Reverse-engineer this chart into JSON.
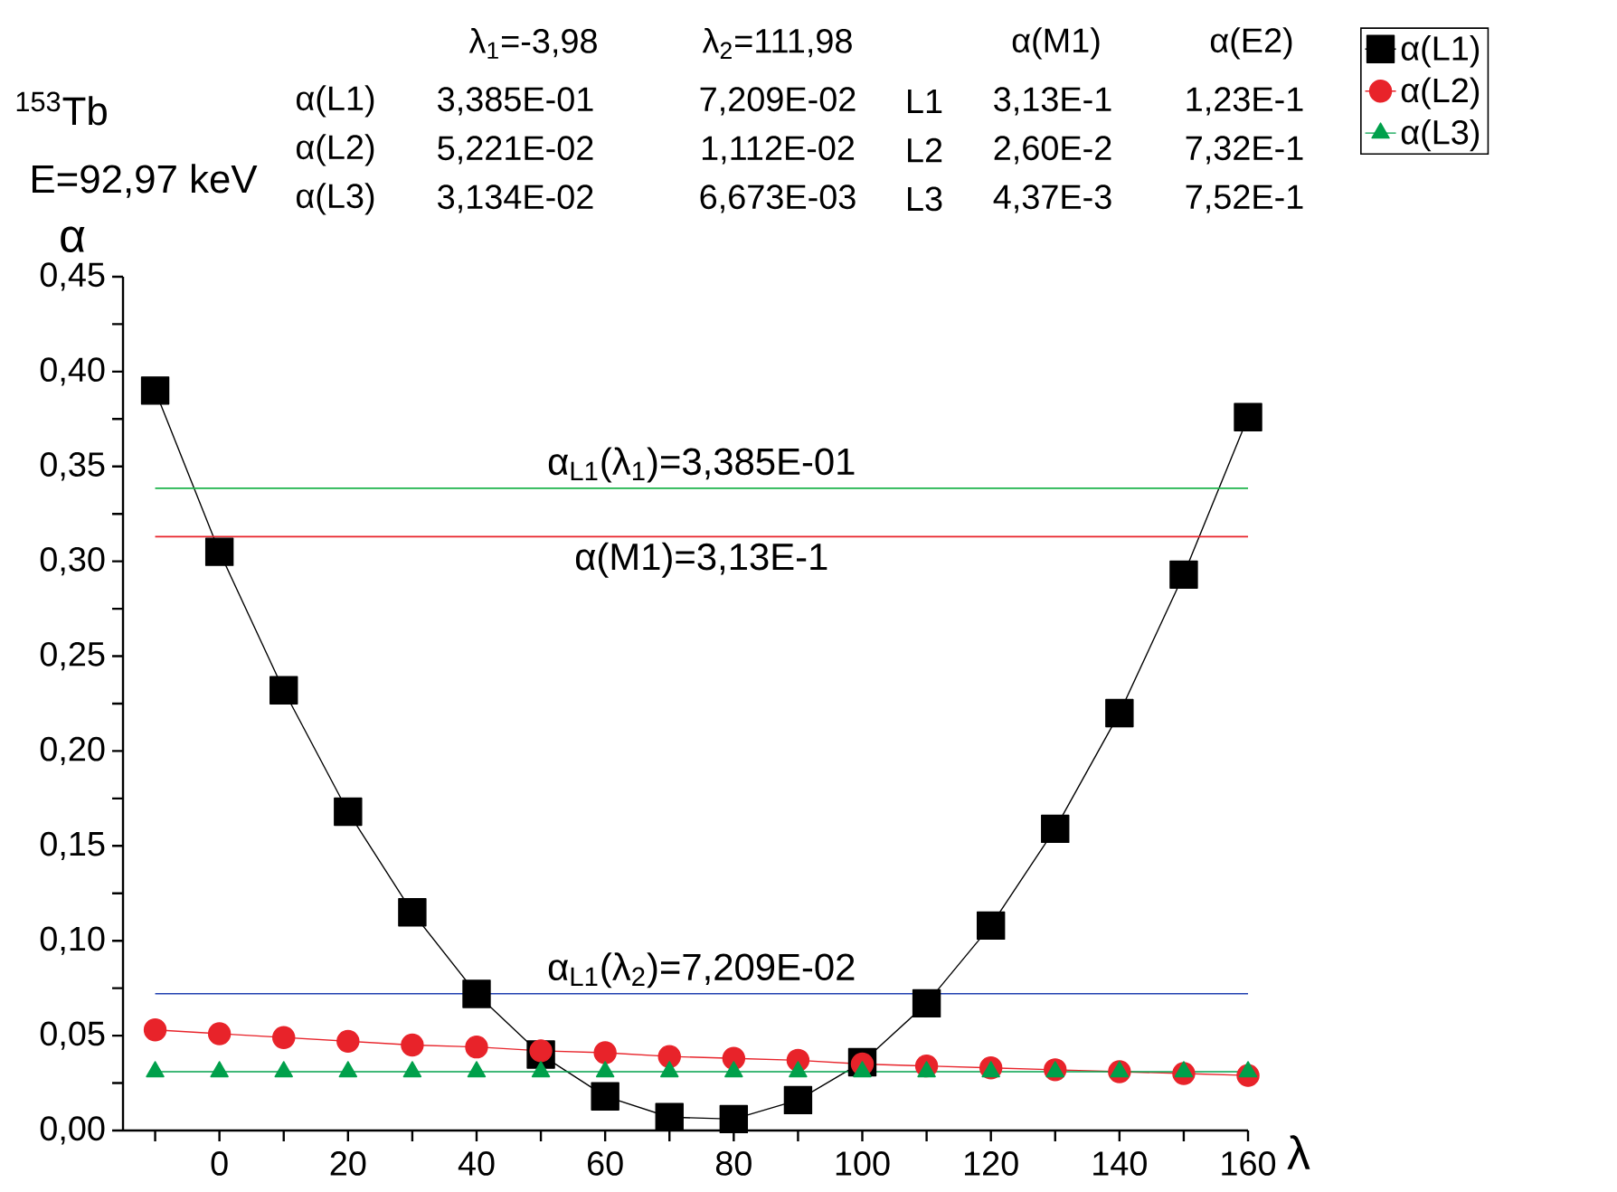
{
  "chart_data": {
    "type": "line",
    "xlabel": "λ",
    "ylabel": "α",
    "x": [
      -10,
      0,
      10,
      20,
      30,
      40,
      50,
      60,
      70,
      80,
      90,
      100,
      110,
      120,
      130,
      140,
      150,
      160
    ],
    "series": [
      {
        "name": "α(L1)",
        "color": "#000000",
        "marker": "square",
        "values": [
          0.39,
          0.305,
          0.232,
          0.168,
          0.115,
          0.072,
          0.04,
          0.018,
          0.007,
          0.006,
          0.016,
          0.036,
          0.067,
          0.108,
          0.159,
          0.22,
          0.293,
          0.376
        ]
      },
      {
        "name": "α(L2)",
        "color": "#e8232a",
        "marker": "circle",
        "values": [
          0.053,
          0.051,
          0.049,
          0.047,
          0.045,
          0.044,
          0.042,
          0.041,
          0.039,
          0.038,
          0.037,
          0.035,
          0.034,
          0.033,
          0.032,
          0.031,
          0.03,
          0.029
        ]
      },
      {
        "name": "α(L3)",
        "color": "#00a04b",
        "marker": "triangle",
        "values": [
          0.031,
          0.031,
          0.031,
          0.031,
          0.031,
          0.031,
          0.031,
          0.031,
          0.031,
          0.031,
          0.031,
          0.031,
          0.031,
          0.031,
          0.031,
          0.031,
          0.031,
          0.031
        ]
      }
    ],
    "xlim": [
      -15,
      160
    ],
    "ylim": [
      0,
      0.45
    ],
    "xticks": [
      {
        "value": -10,
        "label": null
      },
      0,
      {
        "value": 10,
        "label": null
      },
      20,
      {
        "value": 30,
        "label": null
      },
      40,
      {
        "value": 50,
        "label": null
      },
      60,
      {
        "value": 70,
        "label": null
      },
      80,
      {
        "value": 90,
        "label": null
      },
      100,
      {
        "value": 110,
        "label": null
      },
      120,
      {
        "value": 130,
        "label": null
      },
      140,
      {
        "value": 150,
        "label": null
      },
      160
    ],
    "yticks": [
      {
        "value": 0,
        "label": "0,00"
      },
      {
        "value": 0.025,
        "label": null
      },
      {
        "value": 0.05,
        "label": "0,05"
      },
      {
        "value": 0.075,
        "label": null
      },
      {
        "value": 0.1,
        "label": "0,10"
      },
      {
        "value": 0.125,
        "label": null
      },
      {
        "value": 0.15,
        "label": "0,15"
      },
      {
        "value": 0.175,
        "label": null
      },
      {
        "value": 0.2,
        "label": "0,20"
      },
      {
        "value": 0.225,
        "label": null
      },
      {
        "value": 0.25,
        "label": "0,25"
      },
      {
        "value": 0.275,
        "label": null
      },
      {
        "value": 0.3,
        "label": "0,30"
      },
      {
        "value": 0.325,
        "label": null
      },
      {
        "value": 0.35,
        "label": "0,35"
      },
      {
        "value": 0.375,
        "label": null
      },
      {
        "value": 0.4,
        "label": "0,40"
      },
      {
        "value": 0.425,
        "label": null
      },
      {
        "value": 0.45,
        "label": "0,45"
      }
    ],
    "ref_lines": [
      {
        "axis": "y",
        "value": 0.3385,
        "color": "#1db34a"
      },
      {
        "axis": "y",
        "value": 0.313,
        "color": "#e8232a"
      },
      {
        "axis": "y",
        "value": 0.07209,
        "color": "#2040b0"
      }
    ],
    "annotations": [
      "$^{153}$Tb",
      "E=92,97 keV",
      "λ$_{1}$=-3,98",
      "λ$_{2}$=111,98",
      "α(L1)",
      "3,385E-01",
      "7,209E-02",
      "α(L2)",
      "5,221E-02",
      "1,112E-02",
      "α(L3)",
      "3,134E-02",
      "6,673E-03",
      "α(M1)",
      "α(E2)",
      "L1",
      "3,13E-1",
      "1,23E-1",
      "L2",
      "2,60E-2",
      "7,32E-1",
      "L3",
      "4,37E-3",
      "7,52E-1",
      {
        "text": "α$_{L1}$(λ$_{1}$)=3,385E-01",
        "y": 0.3385
      },
      {
        "text": "α(M1)=3,13E-1",
        "y": 0.313
      },
      {
        "text": "α$_{L1}$(λ$_{2}$)=7,209E-02",
        "y": 0.07209
      }
    ],
    "legend": "top right",
    "grid": false,
    "line_style": "solid"
  }
}
